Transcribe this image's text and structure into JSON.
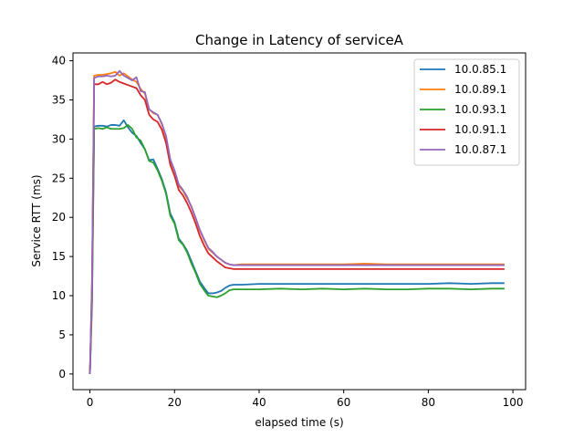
{
  "chart_data": {
    "type": "line",
    "title": "Change in Latency of serviceA",
    "xlabel": "elapsed time (s)",
    "ylabel": "Service RTT (ms)",
    "xlim": [
      -4,
      103
    ],
    "ylim": [
      -2,
      41
    ],
    "xticks": [
      0,
      20,
      40,
      60,
      80,
      100
    ],
    "yticks": [
      0,
      5,
      10,
      15,
      20,
      25,
      30,
      35,
      40
    ],
    "grid": false,
    "legend_position": "top-right",
    "series": [
      {
        "name": "10.0.85.1",
        "color": "#1f77b4",
        "points": [
          [
            0,
            0
          ],
          [
            0.5,
            10
          ],
          [
            1,
            31.6
          ],
          [
            2,
            31.7
          ],
          [
            3,
            31.7
          ],
          [
            4,
            31.6
          ],
          [
            5,
            31.8
          ],
          [
            6,
            31.8
          ],
          [
            7,
            31.7
          ],
          [
            8,
            32.4
          ],
          [
            9,
            31.5
          ],
          [
            10,
            30.8
          ],
          [
            11,
            30.4
          ],
          [
            12,
            29.5
          ],
          [
            13,
            28.7
          ],
          [
            14,
            27.3
          ],
          [
            15,
            27.4
          ],
          [
            16,
            26.2
          ],
          [
            17,
            24.9
          ],
          [
            18,
            23.2
          ],
          [
            19,
            20.5
          ],
          [
            20,
            19.4
          ],
          [
            21,
            17.3
          ],
          [
            22,
            16.6
          ],
          [
            23,
            15.7
          ],
          [
            24,
            14.4
          ],
          [
            25,
            13.1
          ],
          [
            26,
            11.8
          ],
          [
            27,
            11.0
          ],
          [
            28,
            10.3
          ],
          [
            29,
            10.3
          ],
          [
            30,
            10.4
          ],
          [
            31,
            10.6
          ],
          [
            32,
            11.0
          ],
          [
            33,
            11.3
          ],
          [
            34,
            11.4
          ],
          [
            36,
            11.4
          ],
          [
            40,
            11.5
          ],
          [
            45,
            11.5
          ],
          [
            50,
            11.5
          ],
          [
            55,
            11.5
          ],
          [
            60,
            11.5
          ],
          [
            65,
            11.5
          ],
          [
            70,
            11.5
          ],
          [
            75,
            11.5
          ],
          [
            80,
            11.5
          ],
          [
            85,
            11.6
          ],
          [
            90,
            11.5
          ],
          [
            95,
            11.6
          ],
          [
            98,
            11.6
          ]
        ]
      },
      {
        "name": "10.0.89.1",
        "color": "#ff7f0e",
        "points": [
          [
            0,
            0
          ],
          [
            0.5,
            12
          ],
          [
            1,
            38.1
          ],
          [
            2,
            38.2
          ],
          [
            3,
            38.2
          ],
          [
            4,
            38.3
          ],
          [
            5,
            38.4
          ],
          [
            6,
            38.6
          ],
          [
            7,
            38.1
          ],
          [
            8,
            38.4
          ],
          [
            9,
            38.0
          ],
          [
            10,
            37.6
          ],
          [
            11,
            37.3
          ],
          [
            12,
            36.4
          ],
          [
            13,
            35.8
          ],
          [
            14,
            33.8
          ],
          [
            15,
            33.3
          ],
          [
            16,
            33.1
          ],
          [
            17,
            31.9
          ],
          [
            18,
            30.2
          ],
          [
            19,
            27.3
          ],
          [
            20,
            25.9
          ],
          [
            21,
            24.0
          ],
          [
            22,
            23.4
          ],
          [
            23,
            22.4
          ],
          [
            24,
            21.4
          ],
          [
            25,
            19.9
          ],
          [
            26,
            18.3
          ],
          [
            27,
            17.1
          ],
          [
            28,
            16.0
          ],
          [
            29,
            15.5
          ],
          [
            30,
            15.0
          ],
          [
            31,
            14.6
          ],
          [
            32,
            14.2
          ],
          [
            33,
            14.0
          ],
          [
            34,
            13.9
          ],
          [
            36,
            14.0
          ],
          [
            40,
            14.0
          ],
          [
            45,
            14.0
          ],
          [
            50,
            14.0
          ],
          [
            55,
            14.0
          ],
          [
            60,
            14.0
          ],
          [
            65,
            14.1
          ],
          [
            70,
            14.0
          ],
          [
            75,
            14.0
          ],
          [
            80,
            14.0
          ],
          [
            85,
            14.0
          ],
          [
            90,
            14.0
          ],
          [
            95,
            14.0
          ],
          [
            98,
            14.0
          ]
        ]
      },
      {
        "name": "10.0.93.1",
        "color": "#2ca02c",
        "points": [
          [
            0,
            0
          ],
          [
            0.5,
            9
          ],
          [
            1,
            31.3
          ],
          [
            2,
            31.4
          ],
          [
            3,
            31.3
          ],
          [
            4,
            31.5
          ],
          [
            5,
            31.3
          ],
          [
            6,
            31.3
          ],
          [
            7,
            31.3
          ],
          [
            8,
            31.4
          ],
          [
            9,
            31.8
          ],
          [
            10,
            31.3
          ],
          [
            11,
            30.2
          ],
          [
            12,
            29.8
          ],
          [
            13,
            28.7
          ],
          [
            14,
            27.2
          ],
          [
            15,
            27.0
          ],
          [
            16,
            26.0
          ],
          [
            17,
            24.7
          ],
          [
            18,
            23.0
          ],
          [
            19,
            20.2
          ],
          [
            20,
            19.2
          ],
          [
            21,
            17.1
          ],
          [
            22,
            16.5
          ],
          [
            23,
            15.5
          ],
          [
            24,
            14.1
          ],
          [
            25,
            12.9
          ],
          [
            26,
            11.5
          ],
          [
            27,
            10.7
          ],
          [
            28,
            10.0
          ],
          [
            29,
            9.9
          ],
          [
            30,
            9.8
          ],
          [
            31,
            10.0
          ],
          [
            32,
            10.3
          ],
          [
            33,
            10.7
          ],
          [
            34,
            10.8
          ],
          [
            36,
            10.8
          ],
          [
            40,
            10.8
          ],
          [
            45,
            10.9
          ],
          [
            50,
            10.8
          ],
          [
            55,
            10.9
          ],
          [
            60,
            10.8
          ],
          [
            65,
            10.9
          ],
          [
            70,
            10.8
          ],
          [
            75,
            10.8
          ],
          [
            80,
            10.9
          ],
          [
            85,
            10.9
          ],
          [
            90,
            10.8
          ],
          [
            95,
            10.9
          ],
          [
            98,
            10.9
          ]
        ]
      },
      {
        "name": "10.0.91.1",
        "color": "#d62728",
        "points": [
          [
            0,
            0
          ],
          [
            0.5,
            11
          ],
          [
            1,
            37.0
          ],
          [
            2,
            37.0
          ],
          [
            3,
            37.3
          ],
          [
            4,
            37.0
          ],
          [
            5,
            37.2
          ],
          [
            6,
            37.6
          ],
          [
            7,
            37.3
          ],
          [
            8,
            37.1
          ],
          [
            9,
            36.9
          ],
          [
            10,
            36.7
          ],
          [
            11,
            36.5
          ],
          [
            12,
            35.6
          ],
          [
            13,
            35.0
          ],
          [
            14,
            33.1
          ],
          [
            15,
            32.5
          ],
          [
            16,
            32.2
          ],
          [
            17,
            31.2
          ],
          [
            18,
            29.5
          ],
          [
            19,
            26.7
          ],
          [
            20,
            25.3
          ],
          [
            21,
            23.5
          ],
          [
            22,
            22.8
          ],
          [
            23,
            21.8
          ],
          [
            24,
            20.6
          ],
          [
            25,
            19.2
          ],
          [
            26,
            17.6
          ],
          [
            27,
            16.4
          ],
          [
            28,
            15.4
          ],
          [
            29,
            14.9
          ],
          [
            30,
            14.4
          ],
          [
            31,
            14.0
          ],
          [
            32,
            13.6
          ],
          [
            33,
            13.5
          ],
          [
            34,
            13.4
          ],
          [
            36,
            13.4
          ],
          [
            40,
            13.4
          ],
          [
            45,
            13.4
          ],
          [
            50,
            13.4
          ],
          [
            55,
            13.4
          ],
          [
            60,
            13.4
          ],
          [
            65,
            13.4
          ],
          [
            70,
            13.4
          ],
          [
            75,
            13.4
          ],
          [
            80,
            13.4
          ],
          [
            85,
            13.4
          ],
          [
            90,
            13.4
          ],
          [
            95,
            13.4
          ],
          [
            98,
            13.4
          ]
        ]
      },
      {
        "name": "10.0.87.1",
        "color": "#9467bd",
        "points": [
          [
            0,
            0
          ],
          [
            0.5,
            12
          ],
          [
            1,
            37.8
          ],
          [
            2,
            38.0
          ],
          [
            3,
            38.0
          ],
          [
            4,
            38.1
          ],
          [
            5,
            38.0
          ],
          [
            6,
            38.1
          ],
          [
            7,
            38.7
          ],
          [
            8,
            38.1
          ],
          [
            9,
            37.8
          ],
          [
            10,
            37.5
          ],
          [
            11,
            37.9
          ],
          [
            12,
            36.1
          ],
          [
            13,
            36.0
          ],
          [
            14,
            33.8
          ],
          [
            15,
            33.4
          ],
          [
            16,
            33.1
          ],
          [
            17,
            32.0
          ],
          [
            18,
            30.4
          ],
          [
            19,
            27.4
          ],
          [
            20,
            26.0
          ],
          [
            21,
            24.2
          ],
          [
            22,
            23.5
          ],
          [
            23,
            22.6
          ],
          [
            24,
            21.3
          ],
          [
            25,
            19.9
          ],
          [
            26,
            18.4
          ],
          [
            27,
            17.2
          ],
          [
            28,
            16.1
          ],
          [
            29,
            15.6
          ],
          [
            30,
            15.0
          ],
          [
            31,
            14.6
          ],
          [
            32,
            14.2
          ],
          [
            33,
            14.0
          ],
          [
            34,
            13.9
          ],
          [
            36,
            13.9
          ],
          [
            40,
            13.9
          ],
          [
            45,
            13.9
          ],
          [
            50,
            13.9
          ],
          [
            55,
            13.9
          ],
          [
            60,
            13.9
          ],
          [
            65,
            13.9
          ],
          [
            70,
            13.9
          ],
          [
            75,
            13.9
          ],
          [
            80,
            13.9
          ],
          [
            85,
            13.9
          ],
          [
            90,
            13.9
          ],
          [
            95,
            13.9
          ],
          [
            98,
            13.9
          ]
        ]
      }
    ]
  }
}
